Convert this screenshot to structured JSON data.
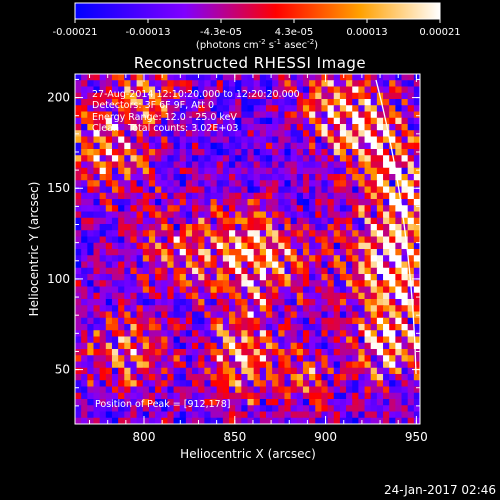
{
  "chart_data": {
    "type": "heatmap",
    "title": "Reconstructed RHESSI Image",
    "xlabel": "Heliocentric X (arcsec)",
    "ylabel": "Heliocentric Y (arcsec)",
    "xlim": [
      762,
      952
    ],
    "ylim": [
      20,
      213
    ],
    "x_ticks": [
      "800",
      "850",
      "900",
      "950"
    ],
    "y_ticks": [
      "50",
      "100",
      "150",
      "200"
    ],
    "colorbar": {
      "range": [
        -0.00021,
        0.00021
      ],
      "tick_labels": [
        "-0.00021",
        "-0.00013",
        "-4.3e-05",
        "4.3e-05",
        "0.00013",
        "0.00021"
      ],
      "unit_label_parts": [
        "(photons cm",
        "-2",
        " s",
        "-1",
        " asec",
        "-2",
        ")"
      ],
      "colors": [
        "#0000ff",
        "#8000ff",
        "#ff0000",
        "#ffa000",
        "#ffffff"
      ]
    },
    "annotations": [
      "27-Aug-2014 12:10:20.000 to 12:20:20.000",
      "Detectors: 3F 6F 9F, Att 0",
      "Energy Range: 12.0 - 25.0 keV",
      "Clean   Total counts: 3.02E+03"
    ],
    "peak_label": "Position of Peak = [912,178]",
    "limb_color": "#ffffff"
  },
  "footer": {
    "timestamp": "24-Jan-2017 02:46"
  }
}
